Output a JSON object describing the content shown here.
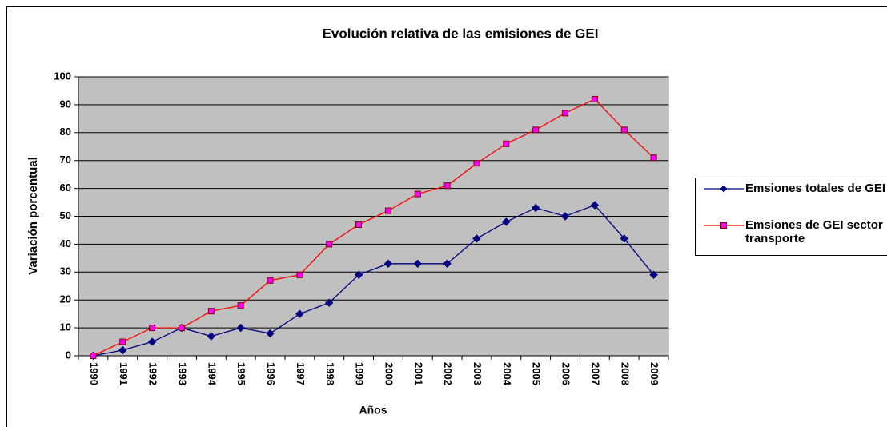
{
  "chart_data": {
    "type": "line",
    "title": "Evolución relativa de las emisiones de GEI",
    "xlabel": "Años",
    "ylabel": "Variación porcentual",
    "categories": [
      "1990",
      "1991",
      "1992",
      "1993",
      "1994",
      "1995",
      "1996",
      "1997",
      "1998",
      "1999",
      "2000",
      "2001",
      "2002",
      "2003",
      "2004",
      "2005",
      "2006",
      "2007",
      "2008",
      "2009"
    ],
    "series": [
      {
        "name": "Emsiones totales de GEI",
        "color": "#000080",
        "marker": "diamond",
        "values": [
          0,
          2,
          5,
          10,
          7,
          10,
          8,
          15,
          19,
          29,
          33,
          33,
          33,
          42,
          48,
          53,
          50,
          54,
          42,
          29
        ]
      },
      {
        "name": "Emsiones de GEI sector transporte",
        "color": "#ff0000",
        "marker": "square",
        "values": [
          0,
          5,
          10,
          10,
          16,
          18,
          27,
          29,
          40,
          47,
          52,
          58,
          61,
          69,
          76,
          81,
          87,
          92,
          81,
          71
        ]
      }
    ],
    "ylim": [
      0,
      100
    ],
    "yticks": [
      0,
      10,
      20,
      30,
      40,
      50,
      60,
      70,
      80,
      90,
      100
    ],
    "grid": true,
    "legend": "right"
  }
}
